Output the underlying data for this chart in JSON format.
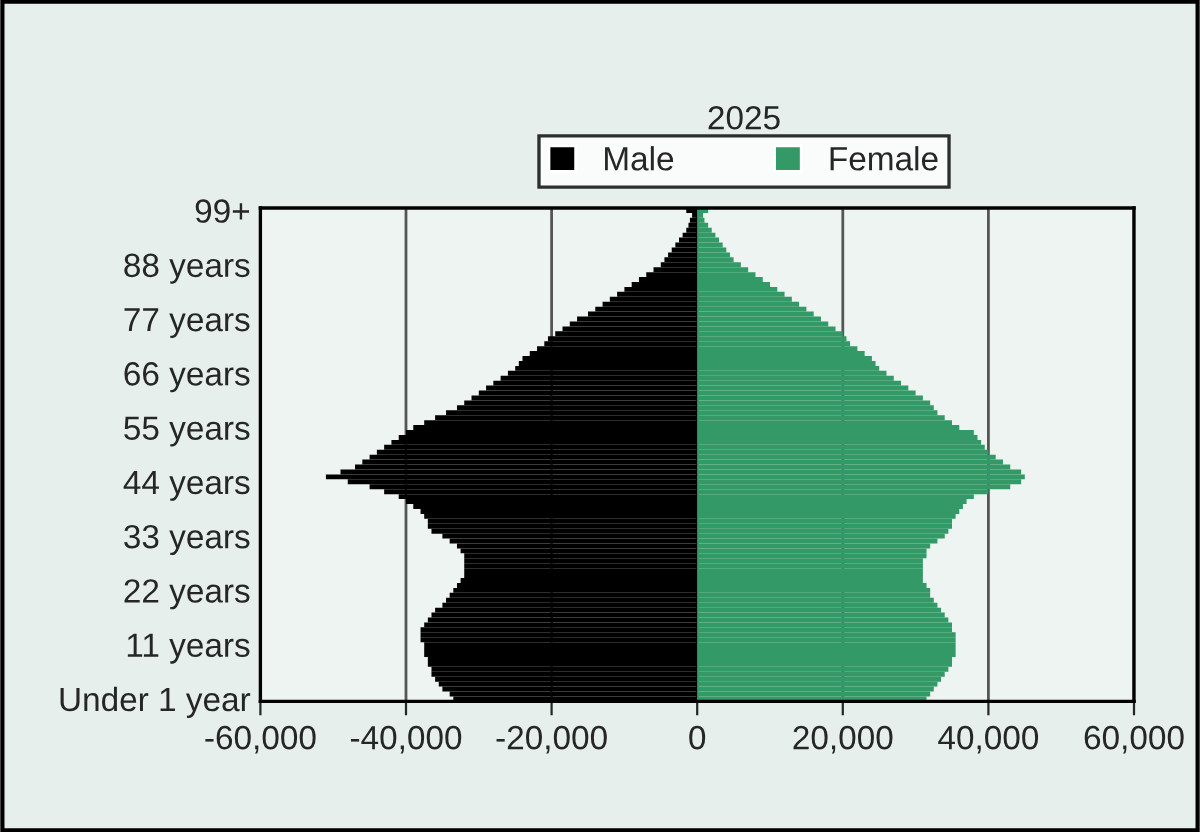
{
  "chart_data": {
    "type": "bar",
    "orientation": "horizontal",
    "title": "2025",
    "categories": [
      "99+",
      null,
      null,
      null,
      null,
      null,
      null,
      null,
      null,
      null,
      null,
      "88 years",
      null,
      null,
      null,
      null,
      null,
      null,
      null,
      null,
      null,
      null,
      "77 years",
      null,
      null,
      null,
      null,
      null,
      null,
      null,
      null,
      null,
      null,
      "66 years",
      null,
      null,
      null,
      null,
      null,
      null,
      null,
      null,
      null,
      null,
      "55 years",
      null,
      null,
      null,
      null,
      null,
      null,
      null,
      null,
      null,
      null,
      "44 years",
      null,
      null,
      null,
      null,
      null,
      null,
      null,
      null,
      null,
      null,
      "33 years",
      null,
      null,
      null,
      null,
      null,
      null,
      null,
      null,
      null,
      null,
      "22 years",
      null,
      null,
      null,
      null,
      null,
      null,
      null,
      null,
      null,
      null,
      "11 years",
      null,
      null,
      null,
      null,
      null,
      null,
      null,
      null,
      null,
      null,
      "Under 1 year"
    ],
    "series": [
      {
        "name": "Male",
        "color": "#000000",
        "values": [
          -1500,
          -700,
          -1000,
          -1200,
          -1500,
          -2000,
          -2500,
          -3000,
          -3500,
          -4000,
          -4500,
          -5000,
          -6000,
          -7000,
          -8000,
          -9000,
          -10000,
          -11000,
          -12000,
          -13000,
          -14000,
          -15000,
          -16500,
          -17500,
          -18500,
          -19500,
          -20500,
          -21000,
          -22000,
          -23000,
          -24000,
          -24500,
          -25000,
          -26000,
          -27000,
          -28000,
          -29000,
          -30000,
          -31000,
          -32000,
          -33000,
          -34500,
          -36000,
          -37500,
          -39000,
          -40000,
          -41000,
          -42000,
          -43000,
          -44000,
          -45000,
          -46000,
          -47000,
          -49000,
          -51000,
          -48000,
          -45000,
          -43000,
          -41000,
          -40000,
          -39000,
          -38000,
          -37500,
          -37000,
          -37000,
          -36500,
          -35000,
          -34000,
          -33000,
          -32500,
          -32000,
          -32000,
          -32000,
          -32000,
          -32000,
          -32500,
          -33000,
          -33500,
          -34000,
          -34500,
          -35000,
          -36000,
          -36500,
          -37000,
          -37500,
          -38000,
          -38000,
          -38000,
          -37500,
          -37500,
          -37500,
          -37000,
          -37000,
          -36500,
          -36500,
          -36000,
          -35500,
          -35000,
          -34000,
          -33500
        ]
      },
      {
        "name": "Female",
        "color": "#339966",
        "values": [
          1500,
          800,
          1000,
          1500,
          2000,
          2500,
          3000,
          3500,
          4000,
          4500,
          5000,
          6000,
          7000,
          8000,
          9000,
          10000,
          11000,
          12000,
          13000,
          14000,
          15000,
          16000,
          17000,
          18000,
          19000,
          20000,
          20500,
          21000,
          22000,
          23000,
          24000,
          24500,
          25000,
          26000,
          27000,
          28000,
          29000,
          30000,
          31000,
          32000,
          32500,
          33000,
          34000,
          35000,
          36000,
          38000,
          38500,
          39000,
          39500,
          40000,
          41000,
          42000,
          43000,
          44500,
          45000,
          44500,
          43000,
          40000,
          38000,
          37000,
          36500,
          36000,
          35500,
          35000,
          35000,
          34500,
          34000,
          33000,
          32000,
          31500,
          31500,
          31000,
          31000,
          31000,
          31000,
          31000,
          31500,
          32000,
          32000,
          32500,
          33000,
          33500,
          34000,
          34500,
          35000,
          35000,
          35500,
          35500,
          35500,
          35500,
          35500,
          35000,
          35000,
          34500,
          34000,
          33500,
          33000,
          32500,
          32000,
          31500
        ]
      }
    ],
    "xlim": [
      -60000,
      60000
    ],
    "xticks": [
      {
        "value": -60000,
        "label": "-60,000"
      },
      {
        "value": -40000,
        "label": "-40,000"
      },
      {
        "value": -20000,
        "label": "-20,000"
      },
      0,
      {
        "value": 20000,
        "label": "20,000"
      },
      {
        "value": 40000,
        "label": "40,000"
      },
      {
        "value": 60000,
        "label": "60,000"
      }
    ],
    "stacked": true,
    "grid": "x",
    "legend": "top"
  }
}
